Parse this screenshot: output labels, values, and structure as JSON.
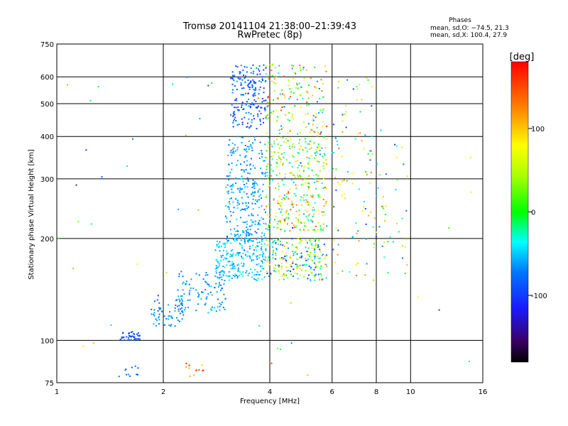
{
  "chart_data": {
    "type": "scatter",
    "title": "Tromsø 20141104 21:38:00–21:39:43",
    "subtitle": "RwPretec (8p)",
    "stats": {
      "heading": "Phases",
      "line_o": "mean, sd,O: −74.5, 21.3",
      "line_x": "mean, sd,X: 100.4, 27.9"
    },
    "xlabel": "Frequency [MHz]",
    "ylabel": "Stationary phase Virtual Height [km]",
    "x_scale": "log",
    "y_scale": "log",
    "xlim": [
      1,
      16
    ],
    "ylim": [
      75,
      750
    ],
    "x_ticks": [
      1,
      2,
      4,
      6,
      8,
      10,
      16
    ],
    "x_tick_labels": [
      "1",
      "2",
      "4",
      "6",
      "8",
      "10",
      "16"
    ],
    "y_ticks": [
      75,
      100,
      200,
      300,
      400,
      500,
      600,
      750
    ],
    "y_tick_labels": [
      "75",
      "100",
      "200",
      "300",
      "400",
      "500",
      "600",
      "750"
    ],
    "x_gridlines": [
      2,
      4,
      6,
      8,
      10
    ],
    "y_gridlines": [
      100,
      200,
      300,
      400,
      500,
      600
    ],
    "colorbar": {
      "label": "[deg]",
      "range": [
        -180,
        180
      ],
      "tick_values": [
        -100,
        0,
        100
      ],
      "tick_labels": [
        "-100",
        "0",
        "100"
      ]
    },
    "clusters": [
      {
        "fx": [
          1.5,
          1.72
        ],
        "h": [
          100,
          106
        ],
        "phase": [
          -100,
          -85
        ],
        "n": 40
      },
      {
        "fx": [
          1.5,
          1.7
        ],
        "h": [
          78,
          84
        ],
        "phase": [
          -90,
          -60
        ],
        "n": 12
      },
      {
        "fx": [
          1.85,
          2.3
        ],
        "h": [
          110,
          132
        ],
        "phase": [
          -85,
          -55
        ],
        "n": 60
      },
      {
        "fx": [
          2.2,
          3.0
        ],
        "h": [
          120,
          160
        ],
        "phase": [
          -80,
          -50
        ],
        "n": 110
      },
      {
        "fx": [
          2.8,
          3.9
        ],
        "h": [
          150,
          200
        ],
        "phase": [
          -70,
          -30
        ],
        "n": 220
      },
      {
        "fx": [
          3.0,
          3.9
        ],
        "h": [
          195,
          300
        ],
        "phase": [
          -80,
          -40
        ],
        "n": 200
      },
      {
        "fx": [
          3.0,
          3.9
        ],
        "h": [
          300,
          400
        ],
        "phase": [
          -80,
          -50
        ],
        "n": 90
      },
      {
        "fx": [
          3.1,
          3.9
        ],
        "h": [
          420,
          650
        ],
        "phase": [
          -105,
          -60
        ],
        "n": 190
      },
      {
        "fx": [
          3.9,
          5.8
        ],
        "h": [
          150,
          200
        ],
        "phase": [
          -110,
          120
        ],
        "n": 220
      },
      {
        "fx": [
          3.9,
          5.8
        ],
        "h": [
          210,
          300
        ],
        "phase": [
          -60,
          150
        ],
        "n": 190
      },
      {
        "fx": [
          3.9,
          5.8
        ],
        "h": [
          300,
          400
        ],
        "phase": [
          -60,
          120
        ],
        "n": 150
      },
      {
        "fx": [
          3.9,
          5.8
        ],
        "h": [
          400,
          660
        ],
        "phase": [
          -80,
          160
        ],
        "n": 150
      },
      {
        "fx": [
          6.0,
          7.8
        ],
        "h": [
          150,
          650
        ],
        "phase": [
          -100,
          140
        ],
        "n": 90
      },
      {
        "fx": [
          7.8,
          9.8
        ],
        "h": [
          150,
          380
        ],
        "phase": [
          -110,
          120
        ],
        "n": 45
      },
      {
        "fx": [
          2.3,
          2.6
        ],
        "h": [
          78,
          86
        ],
        "phase": [
          100,
          170
        ],
        "n": 12
      },
      {
        "fx": [
          1.0,
          15.5
        ],
        "h": [
          78,
          620
        ],
        "phase": [
          -110,
          150
        ],
        "n": 55
      }
    ]
  }
}
